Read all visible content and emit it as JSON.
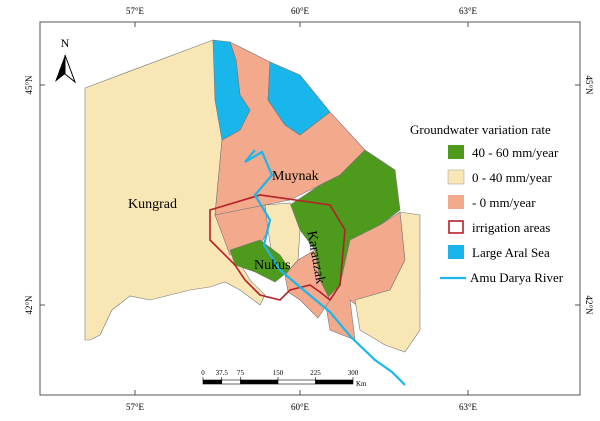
{
  "graticule": {
    "lon": [
      "57°E",
      "60°E",
      "63°E"
    ],
    "lat": [
      "45°N",
      "42°N"
    ]
  },
  "north_arrow": "N",
  "places": {
    "kungrad": "Kungrad",
    "muynak": "Muynak",
    "nukus": "Nukus",
    "karauzak": "Karauzak"
  },
  "legend": {
    "title": "Groundwater variation rate",
    "items": [
      "40 - 60 mm/year",
      "0 - 40 mm/year",
      "- 0 mm/year",
      "irrigation areas",
      "Large Aral Sea",
      "Amu Darya River"
    ]
  },
  "scale_bar": {
    "ticks": [
      0,
      37.5,
      75,
      150,
      225,
      300
    ],
    "unit": "Km"
  }
}
